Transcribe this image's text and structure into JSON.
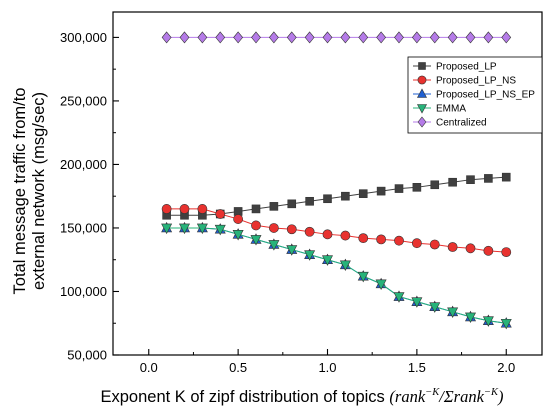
{
  "chart_data": {
    "type": "line",
    "xlabel": "Exponent K of zipf distribution of topics",
    "xlabel_formula": {
      "open": "(",
      "num_base": "rank",
      "num_sup": "−K",
      "slash": "/",
      "den_base": "Σrank",
      "den_sup": "−K",
      "close": ")"
    },
    "ylabel_lines": [
      "Total message traffic from/to",
      "external network (msg/sec)"
    ],
    "xlim": [
      -0.2,
      2.2
    ],
    "ylim": [
      50000,
      320000
    ],
    "x_ticks": [
      0.0,
      0.5,
      1.0,
      1.5,
      2.0
    ],
    "x_tick_labels": [
      "0.0",
      "0.5",
      "1.0",
      "1.5",
      "2.0"
    ],
    "y_ticks": [
      50000,
      100000,
      150000,
      200000,
      250000,
      300000
    ],
    "y_tick_labels": [
      "50,000",
      "100,000",
      "150,000",
      "200,000",
      "250,000",
      "300,000"
    ],
    "legend_position": "top-right",
    "x": [
      0.1,
      0.2,
      0.3,
      0.4,
      0.5,
      0.6,
      0.7,
      0.8,
      0.9,
      1.0,
      1.1,
      1.2,
      1.3,
      1.4,
      1.5,
      1.6,
      1.7,
      1.8,
      1.9,
      2.0
    ],
    "series": [
      {
        "name": "Proposed_LP",
        "marker": "square",
        "color": "#404040",
        "values": [
          160000,
          160000,
          160000,
          161000,
          163000,
          165000,
          167000,
          169000,
          171000,
          173000,
          175000,
          177000,
          179000,
          181000,
          182000,
          184000,
          186000,
          188000,
          189000,
          190000
        ]
      },
      {
        "name": "Proposed_LP_NS",
        "marker": "circle",
        "color": "#e8322f",
        "values": [
          165000,
          165000,
          165000,
          161000,
          157000,
          152000,
          150000,
          149000,
          147000,
          145000,
          144000,
          142000,
          141000,
          140000,
          138000,
          137000,
          135000,
          134000,
          132000,
          131000
        ]
      },
      {
        "name": "Proposed_LP_NS_EP",
        "marker": "triangle-up",
        "color": "#1f5fd1",
        "values": [
          150000,
          150000,
          150000,
          149000,
          145000,
          141000,
          137000,
          133000,
          129000,
          125000,
          121000,
          112000,
          106000,
          96000,
          92000,
          88000,
          84000,
          80000,
          77000,
          75000
        ]
      },
      {
        "name": "EMMA",
        "marker": "triangle-down",
        "color": "#27b37a",
        "values": [
          150000,
          150000,
          150000,
          149000,
          145000,
          141000,
          137000,
          133000,
          129000,
          125000,
          121000,
          112000,
          106000,
          96000,
          92000,
          88000,
          84000,
          80000,
          77000,
          75000
        ]
      },
      {
        "name": "Centralized",
        "marker": "diamond",
        "color": "#b57be8",
        "values": [
          300000,
          300000,
          300000,
          300000,
          300000,
          300000,
          300000,
          300000,
          300000,
          300000,
          300000,
          300000,
          300000,
          300000,
          300000,
          300000,
          300000,
          300000,
          300000,
          300000
        ]
      }
    ]
  }
}
